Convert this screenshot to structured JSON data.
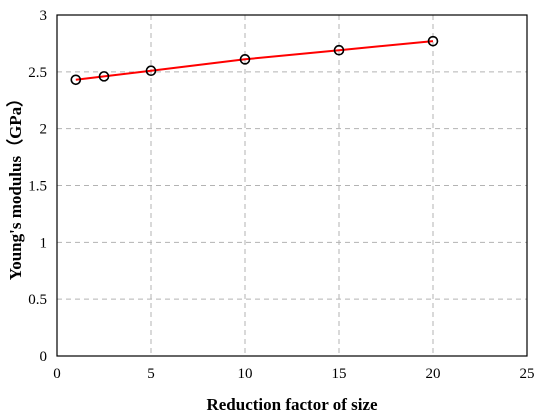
{
  "chart_data": {
    "type": "line",
    "xlabel": "Reduction factor of size",
    "ylabel": "Young's modulus（GPa）",
    "xlim": [
      0,
      25
    ],
    "ylim": [
      0,
      3
    ],
    "xticks": [
      0,
      5,
      10,
      15,
      20,
      25
    ],
    "yticks": [
      0,
      0.5,
      1,
      1.5,
      2,
      2.5,
      3
    ],
    "xtick_labels": [
      "0",
      "5",
      "10",
      "15",
      "20",
      "25"
    ],
    "ytick_labels": [
      "0",
      "0.5",
      "1",
      "1.5",
      "2",
      "2.5",
      "3"
    ],
    "grid": true,
    "legend": false,
    "series": [
      {
        "x": [
          1,
          2.5,
          5,
          10,
          15,
          20
        ],
        "y": [
          2.43,
          2.46,
          2.51,
          2.61,
          2.69,
          2.77
        ],
        "line_color": "#ff0000",
        "marker": "open-circle",
        "marker_color": "#000000"
      }
    ]
  }
}
